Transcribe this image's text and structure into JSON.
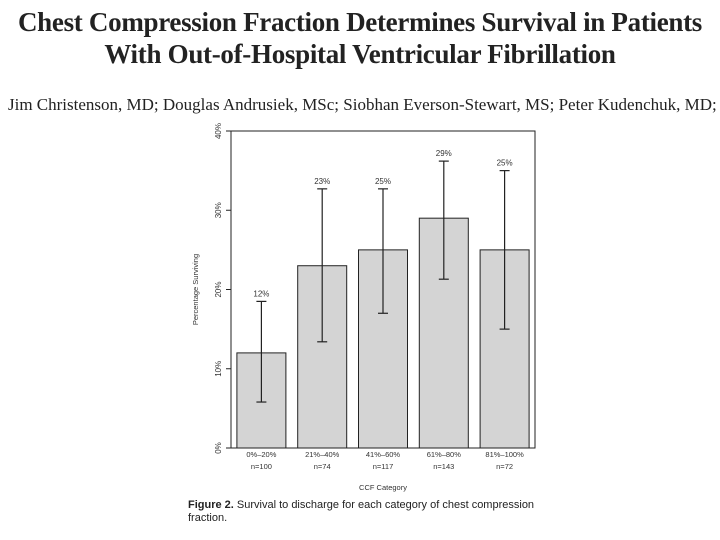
{
  "title": {
    "line1": "Chest Compression Fraction Determines Survival in Patients",
    "line2": "With Out-of-Hospital Ventricular Fibrillation"
  },
  "authors": "Jim Christenson, MD; Douglas Andrusiek, MSc; Siobhan Everson-Stewart, MS; Peter Kudenchuk, MD;",
  "caption": {
    "label": "Figure 2.",
    "text": "Survival to discharge for each category of chest compression fraction."
  },
  "colors": {
    "bar": "#d4d4d4",
    "stroke": "#222222"
  },
  "chart_data": {
    "type": "bar",
    "title": "",
    "xlabel": "CCF Category",
    "ylabel": "Percentage Surviving",
    "ylim": [
      0,
      40
    ],
    "yticks": [
      "0%",
      "10%",
      "20%",
      "30%",
      "40%"
    ],
    "categories": [
      "0%–20%",
      "21%–40%",
      "41%–60%",
      "61%–80%",
      "81%–100%"
    ],
    "n_labels": [
      "n=100",
      "n=74",
      "n=117",
      "n=143",
      "n=72"
    ],
    "values": [
      12,
      23,
      25,
      29,
      25
    ],
    "value_labels": [
      "12%",
      "23%",
      "25%",
      "29%",
      "25%"
    ],
    "ci_low": [
      5.8,
      13.4,
      17,
      21.3,
      15
    ],
    "ci_high": [
      18.5,
      32.7,
      32.7,
      36.2,
      35
    ]
  }
}
